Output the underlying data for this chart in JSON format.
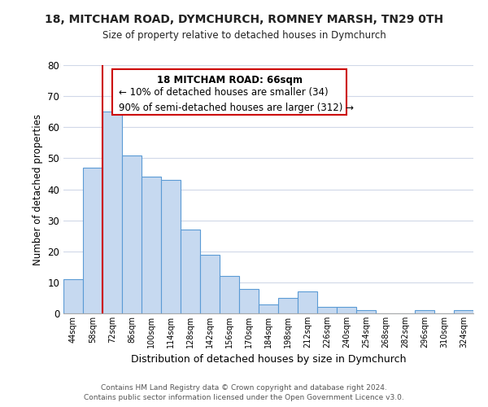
{
  "title": "18, MITCHAM ROAD, DYMCHURCH, ROMNEY MARSH, TN29 0TH",
  "subtitle": "Size of property relative to detached houses in Dymchurch",
  "xlabel": "Distribution of detached houses by size in Dymchurch",
  "ylabel": "Number of detached properties",
  "bar_color": "#c6d9f0",
  "bar_edge_color": "#5b9bd5",
  "categories": [
    "44sqm",
    "58sqm",
    "72sqm",
    "86sqm",
    "100sqm",
    "114sqm",
    "128sqm",
    "142sqm",
    "156sqm",
    "170sqm",
    "184sqm",
    "198sqm",
    "212sqm",
    "226sqm",
    "240sqm",
    "254sqm",
    "268sqm",
    "282sqm",
    "296sqm",
    "310sqm",
    "324sqm"
  ],
  "values": [
    11,
    47,
    65,
    51,
    44,
    43,
    27,
    19,
    12,
    8,
    3,
    5,
    7,
    2,
    2,
    1,
    0,
    0,
    1,
    0,
    1
  ],
  "ylim": [
    0,
    80
  ],
  "yticks": [
    0,
    10,
    20,
    30,
    40,
    50,
    60,
    70,
    80
  ],
  "marker_line_color": "#cc0000",
  "annotation_text_line1": "18 MITCHAM ROAD: 66sqm",
  "annotation_text_line2": "← 10% of detached houses are smaller (34)",
  "annotation_text_line3": "90% of semi-detached houses are larger (312) →",
  "footer_line1": "Contains HM Land Registry data © Crown copyright and database right 2024.",
  "footer_line2": "Contains public sector information licensed under the Open Government Licence v3.0.",
  "background_color": "#ffffff",
  "grid_color": "#d0d8e8"
}
